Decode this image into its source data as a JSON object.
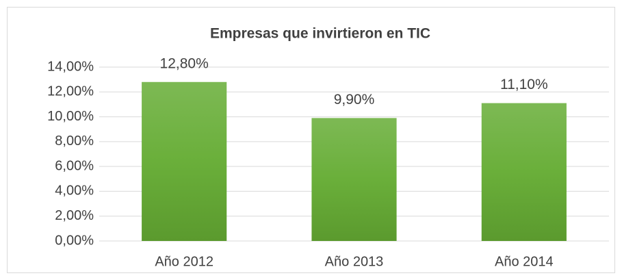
{
  "chart_data": {
    "type": "bar",
    "title": "Empresas que invirtieron en TIC",
    "categories": [
      "Año 2012",
      "Año 2013",
      "Año 2014"
    ],
    "values": [
      12.8,
      9.9,
      11.1
    ],
    "value_labels": [
      "12,80%",
      "9,90%",
      "11,10%"
    ],
    "color": "#6aaa3a",
    "ylim": [
      0,
      14
    ],
    "yticks": [
      {
        "value": 0,
        "label": "0,00%"
      },
      {
        "value": 2,
        "label": "2,00%"
      },
      {
        "value": 4,
        "label": "4,00%"
      },
      {
        "value": 6,
        "label": "6,00%"
      },
      {
        "value": 8,
        "label": "8,00%"
      },
      {
        "value": 10,
        "label": "10,00%"
      },
      {
        "value": 12,
        "label": "12,00%"
      },
      {
        "value": 14,
        "label": "14,00%"
      }
    ],
    "grid": true
  }
}
